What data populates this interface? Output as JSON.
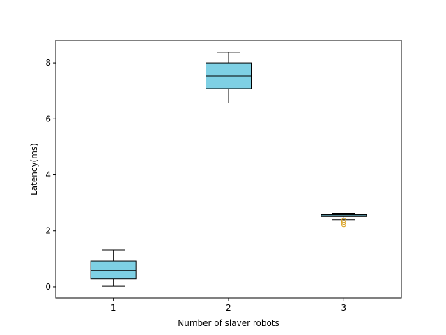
{
  "chart_data": {
    "type": "boxplot",
    "xlabel": "Number of slaver robots",
    "ylabel": "Latency(ms)",
    "xlim": [
      0.5,
      3.5
    ],
    "ylim": [
      -0.4,
      8.8
    ],
    "grid": false,
    "box_fill": "#7ed0e4",
    "median_color": "#000000",
    "outlier_color": "#d9a020",
    "categories": [
      "1",
      "2",
      "3"
    ],
    "yticks": [
      0,
      2,
      4,
      6,
      8
    ],
    "boxes": [
      {
        "position": 1,
        "whisker_low": 0.02,
        "q1": 0.28,
        "median": 0.58,
        "q3": 0.92,
        "whisker_high": 1.32,
        "outliers": []
      },
      {
        "position": 2,
        "whisker_low": 6.57,
        "q1": 7.08,
        "median": 7.53,
        "q3": 8.0,
        "whisker_high": 8.38,
        "outliers": []
      },
      {
        "position": 3,
        "whisker_low": 2.4,
        "q1": 2.51,
        "median": 2.54,
        "q3": 2.58,
        "whisker_high": 2.63,
        "outliers": [
          2.22,
          2.3,
          2.37
        ]
      }
    ]
  }
}
